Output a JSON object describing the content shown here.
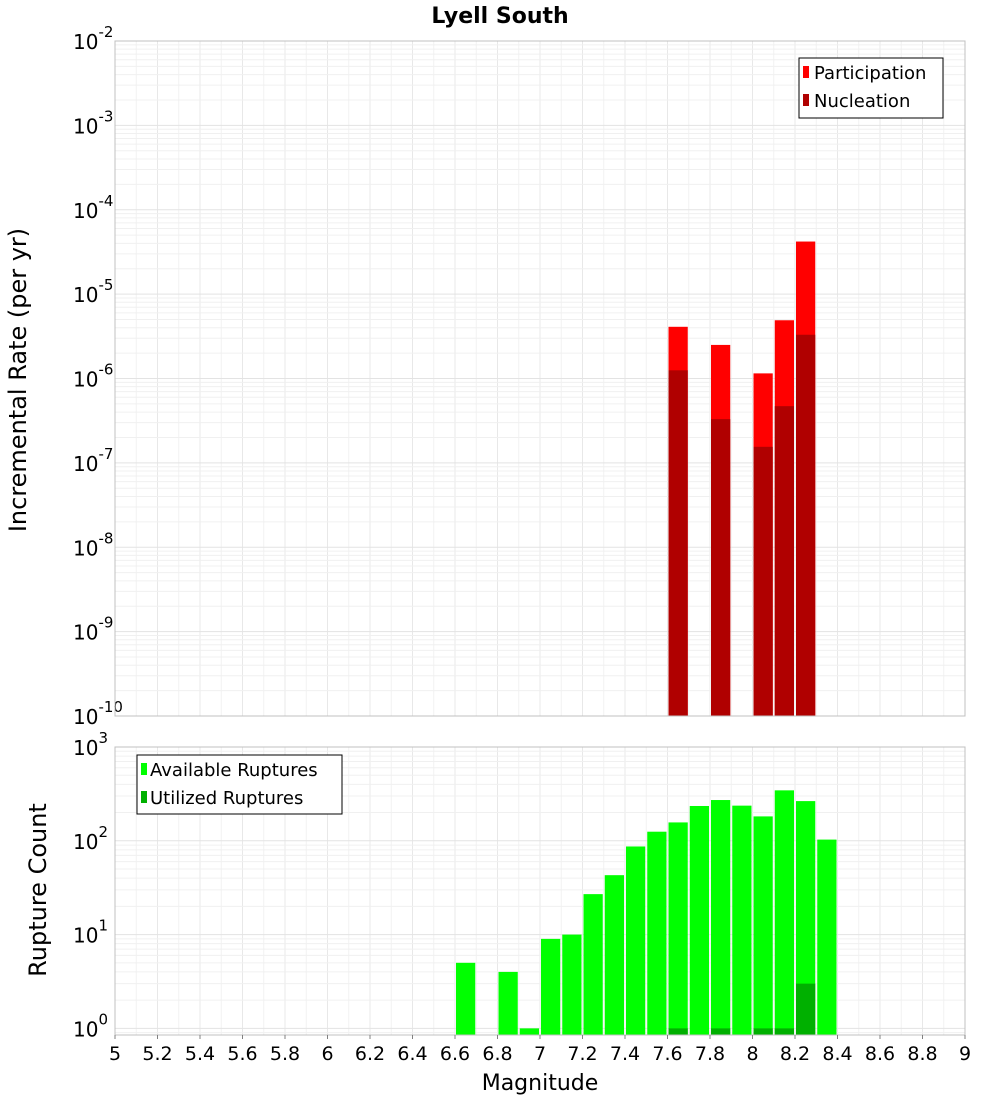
{
  "chart_data": [
    {
      "type": "bar",
      "title": "Lyell South",
      "xlabel": "",
      "ylabel": "Incremental Rate (per yr)",
      "yscale": "log",
      "ylim": [
        1e-10,
        0.01
      ],
      "xlim": [
        5,
        9
      ],
      "bar_width": 0.1,
      "ytick_base": "10",
      "yticks": [
        {
          "value": 0.01,
          "exp": "-2"
        },
        {
          "value": 0.001,
          "exp": "-3"
        },
        {
          "value": 0.0001,
          "exp": "-4"
        },
        {
          "value": 1e-05,
          "exp": "-5"
        },
        {
          "value": 1e-06,
          "exp": "-6"
        },
        {
          "value": 1e-07,
          "exp": "-7"
        },
        {
          "value": 1e-08,
          "exp": "-8"
        },
        {
          "value": 1e-09,
          "exp": "-9"
        },
        {
          "value": 1e-10,
          "exp": "-10"
        }
      ],
      "legend": {
        "position": "top-right"
      },
      "series": [
        {
          "name": "Participation",
          "color": "#ff0000",
          "x": [
            7.65,
            7.85,
            8.05,
            8.15,
            8.25
          ],
          "values": [
            4.1e-06,
            2.5e-06,
            1.15e-06,
            4.9e-06,
            4.2e-05
          ]
        },
        {
          "name": "Nucleation",
          "color": "#b00000",
          "x": [
            7.65,
            7.85,
            8.05,
            8.15,
            8.25
          ],
          "values": [
            1.25e-06,
            3.3e-07,
            1.55e-07,
            4.7e-07,
            3.3e-06
          ]
        }
      ]
    },
    {
      "type": "bar",
      "title": "",
      "xlabel": "Magnitude",
      "ylabel": "Rupture Count",
      "yscale": "log",
      "ylim": [
        0.85,
        1000
      ],
      "xlim": [
        5,
        9
      ],
      "bar_width": 0.1,
      "ytick_base": "10",
      "yticks": [
        {
          "value": 1000,
          "exp": "3"
        },
        {
          "value": 100,
          "exp": "2"
        },
        {
          "value": 10,
          "exp": "1"
        },
        {
          "value": 1,
          "exp": "0"
        }
      ],
      "xticks": [
        "5",
        "5.2",
        "5.4",
        "5.6",
        "5.8",
        "6",
        "6.2",
        "6.4",
        "6.6",
        "6.8",
        "7",
        "7.2",
        "7.4",
        "7.6",
        "7.8",
        "8",
        "8.2",
        "8.4",
        "8.6",
        "8.8",
        "9"
      ],
      "legend": {
        "position": "top-left"
      },
      "series": [
        {
          "name": "Available Ruptures",
          "color": "#00ff00",
          "x": [
            6.65,
            6.85,
            6.95,
            7.05,
            7.15,
            7.25,
            7.35,
            7.45,
            7.55,
            7.65,
            7.75,
            7.85,
            7.95,
            8.05,
            8.15,
            8.25,
            8.35
          ],
          "values": [
            5,
            4,
            1,
            9,
            10,
            27,
            43,
            87,
            125,
            157,
            235,
            272,
            237,
            182,
            345,
            265,
            103
          ]
        },
        {
          "name": "Utilized Ruptures",
          "color": "#00b000",
          "x": [
            7.65,
            7.85,
            8.05,
            8.15,
            8.25
          ],
          "values": [
            1,
            1,
            1,
            1,
            3
          ]
        }
      ]
    }
  ]
}
